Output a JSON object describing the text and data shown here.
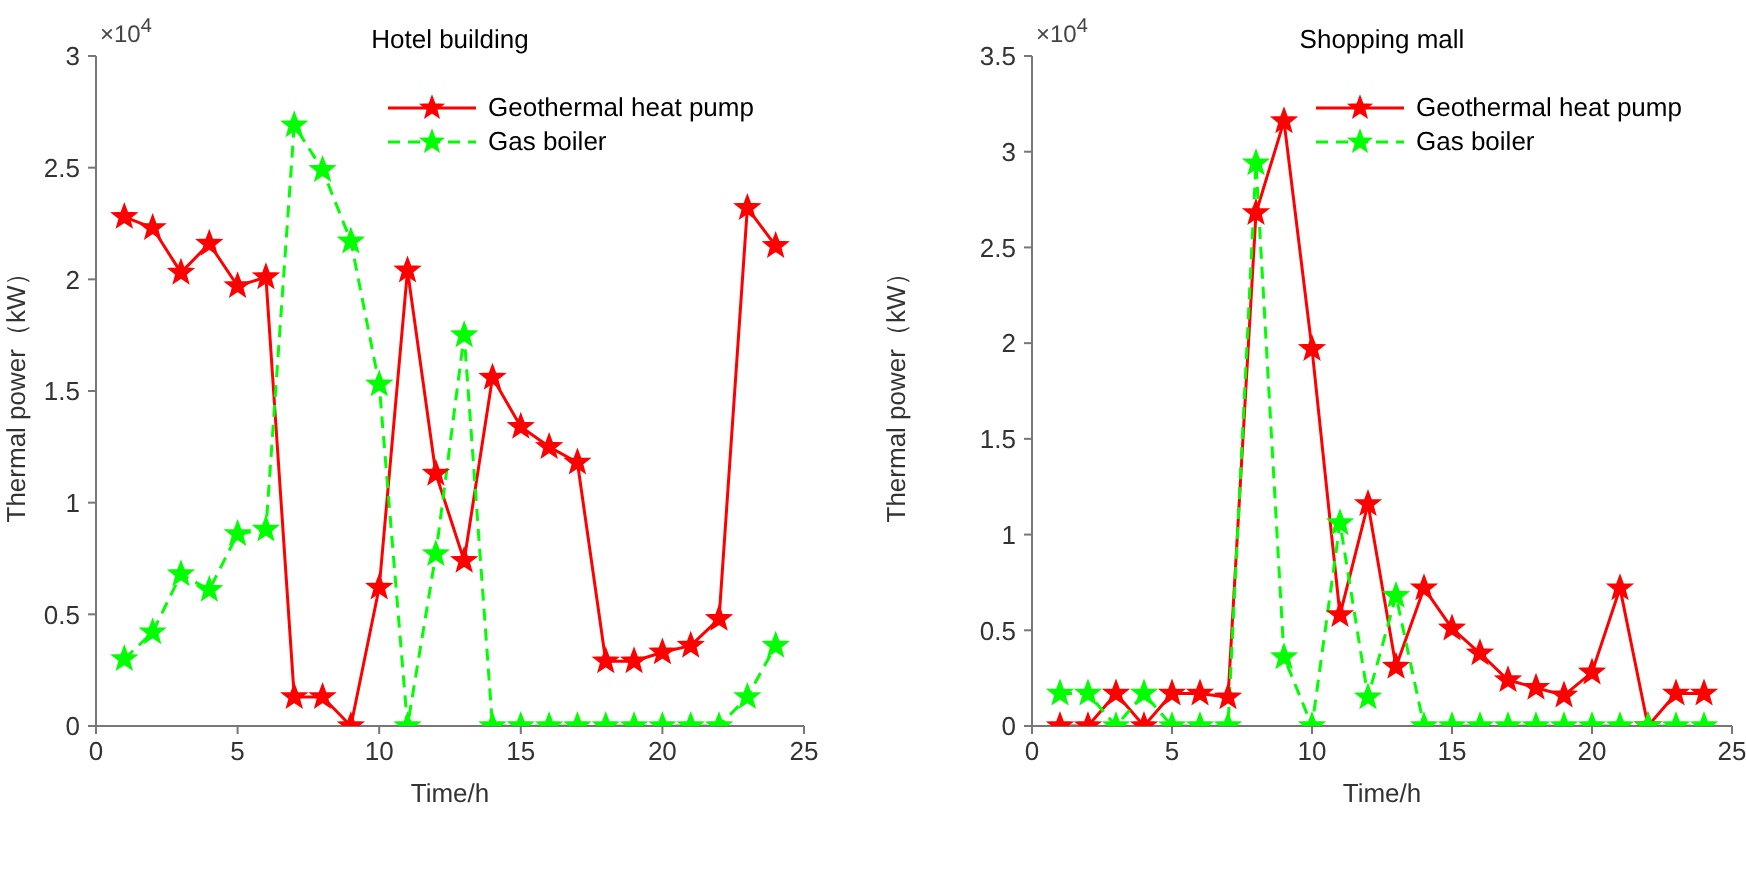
{
  "chart_data": [
    {
      "type": "line",
      "title": "Hotel building",
      "xlabel": "Time/h",
      "ylabel": "Thermal power（kW）",
      "annotations": [
        "×10$^{4}$"
      ],
      "x": [
        1,
        2,
        3,
        4,
        5,
        6,
        7,
        8,
        9,
        10,
        11,
        12,
        13,
        14,
        15,
        16,
        17,
        18,
        19,
        20,
        21,
        22,
        23,
        24
      ],
      "series": [
        {
          "name": "Geothermal heat pump",
          "color": "#ff0000",
          "line_style": "solid",
          "values": [
            2.28,
            2.23,
            2.03,
            2.16,
            1.97,
            2.01,
            0.13,
            0.13,
            0,
            0.62,
            2.04,
            1.13,
            0.74,
            1.56,
            1.34,
            1.25,
            1.18,
            0.29,
            0.29,
            0.33,
            0.36,
            0.48,
            2.32,
            2.15
          ]
        },
        {
          "name": "Gas boiler",
          "color": "#00ff00",
          "line_style": "dashed",
          "values": [
            0.3,
            0.42,
            0.68,
            0.61,
            0.86,
            0.88,
            2.69,
            2.49,
            2.17,
            1.53,
            0,
            0.77,
            1.75,
            0,
            0,
            0,
            0,
            0,
            0,
            0,
            0,
            0,
            0.13,
            0.36
          ]
        }
      ],
      "xlim": [
        0,
        25
      ],
      "xticks": [
        0,
        5,
        10,
        15,
        20,
        25
      ],
      "ylim": [
        0,
        3
      ],
      "yticks": [
        0,
        0.5,
        1,
        1.5,
        2,
        2.5,
        3
      ],
      "grid": false,
      "legend": "top right",
      "marker": "star"
    },
    {
      "type": "line",
      "title": "Shopping mall",
      "xlabel": "Time/h",
      "ylabel": "Thermal power（kW）",
      "annotations": [
        "×10$^{4}$"
      ],
      "x": [
        1,
        2,
        3,
        4,
        5,
        6,
        7,
        8,
        9,
        10,
        11,
        12,
        13,
        14,
        15,
        16,
        17,
        18,
        19,
        20,
        21,
        22,
        23,
        24
      ],
      "series": [
        {
          "name": "Geothermal heat pump",
          "color": "#ff0000",
          "line_style": "solid",
          "values": [
            0,
            0,
            0.17,
            0,
            0.17,
            0.17,
            0.15,
            2.68,
            3.16,
            1.97,
            0.58,
            1.16,
            0.31,
            0.72,
            0.51,
            0.38,
            0.24,
            0.2,
            0.16,
            0.28,
            0.72,
            0,
            0.17,
            0.17
          ]
        },
        {
          "name": "Gas boiler",
          "color": "#00ff00",
          "line_style": "dashed",
          "values": [
            0.17,
            0.17,
            0,
            0.17,
            0,
            0,
            0,
            2.94,
            0.36,
            0,
            1.06,
            0.15,
            0.68,
            0,
            0,
            0,
            0,
            0,
            0,
            0,
            0,
            0,
            0,
            0
          ]
        }
      ],
      "xlim": [
        0,
        25
      ],
      "xticks": [
        0,
        5,
        10,
        15,
        20,
        25
      ],
      "ylim": [
        0,
        3.5
      ],
      "yticks": [
        0,
        0.5,
        1,
        1.5,
        2,
        2.5,
        3,
        3.5
      ],
      "grid": false,
      "legend": "top right",
      "marker": "star"
    }
  ]
}
